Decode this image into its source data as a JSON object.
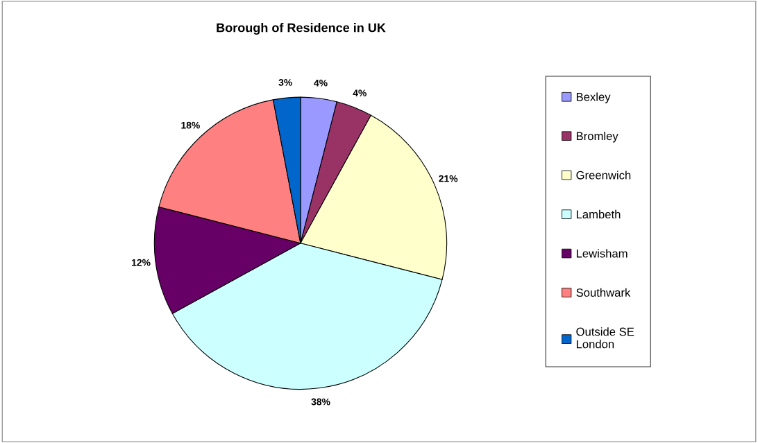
{
  "chart_data": {
    "type": "pie",
    "title": "Borough of Residence in UK",
    "categories": [
      "Bexley",
      "Bromley",
      "Greenwich",
      "Lambeth",
      "Lewisham",
      "Southwark",
      "Outside SE London"
    ],
    "values": [
      4,
      4,
      21,
      38,
      12,
      18,
      3
    ],
    "value_labels": [
      "4%",
      "4%",
      "21%",
      "38%",
      "12%",
      "18%",
      "3%"
    ],
    "colors": [
      "#9999ff",
      "#993366",
      "#ffffcc",
      "#ccffff",
      "#660066",
      "#ff8080",
      "#0066cc"
    ],
    "legend": "right"
  }
}
